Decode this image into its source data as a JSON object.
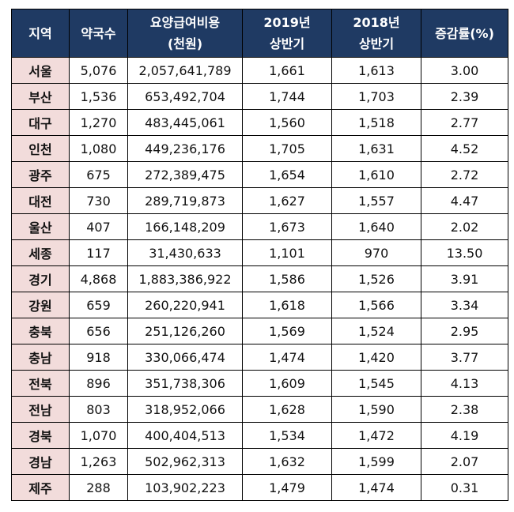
{
  "headers": {
    "region": "지역",
    "pharmacies": "약국수",
    "cost_line1": "요양급여비용",
    "cost_line2": "(천원)",
    "y2019_line1": "2019년",
    "y2019_line2": "상반기",
    "y2018_line1": "2018년",
    "y2018_line2": "상반기",
    "growth": "증감률(%)"
  },
  "rows": [
    {
      "region": "서울",
      "pharmacies": "5,076",
      "cost": "2,057,641,789",
      "y2019": "1,661",
      "y2018": "1,613",
      "growth": "3.00"
    },
    {
      "region": "부산",
      "pharmacies": "1,536",
      "cost": "653,492,704",
      "y2019": "1,744",
      "y2018": "1,703",
      "growth": "2.39"
    },
    {
      "region": "대구",
      "pharmacies": "1,270",
      "cost": "483,445,061",
      "y2019": "1,560",
      "y2018": "1,518",
      "growth": "2.77"
    },
    {
      "region": "인천",
      "pharmacies": "1,080",
      "cost": "449,236,176",
      "y2019": "1,705",
      "y2018": "1,631",
      "growth": "4.52"
    },
    {
      "region": "광주",
      "pharmacies": "675",
      "cost": "272,389,475",
      "y2019": "1,654",
      "y2018": "1,610",
      "growth": "2.72"
    },
    {
      "region": "대전",
      "pharmacies": "730",
      "cost": "289,719,873",
      "y2019": "1,627",
      "y2018": "1,557",
      "growth": "4.47"
    },
    {
      "region": "울산",
      "pharmacies": "407",
      "cost": "166,148,209",
      "y2019": "1,673",
      "y2018": "1,640",
      "growth": "2.02"
    },
    {
      "region": "세종",
      "pharmacies": "117",
      "cost": "31,430,633",
      "y2019": "1,101",
      "y2018": "970",
      "growth": "13.50"
    },
    {
      "region": "경기",
      "pharmacies": "4,868",
      "cost": "1,883,386,922",
      "y2019": "1,586",
      "y2018": "1,526",
      "growth": "3.91"
    },
    {
      "region": "강원",
      "pharmacies": "659",
      "cost": "260,220,941",
      "y2019": "1,618",
      "y2018": "1,566",
      "growth": "3.34"
    },
    {
      "region": "충북",
      "pharmacies": "656",
      "cost": "251,126,260",
      "y2019": "1,569",
      "y2018": "1,524",
      "growth": "2.95"
    },
    {
      "region": "충남",
      "pharmacies": "918",
      "cost": "330,066,474",
      "y2019": "1,474",
      "y2018": "1,420",
      "growth": "3.77"
    },
    {
      "region": "전북",
      "pharmacies": "896",
      "cost": "351,738,306",
      "y2019": "1,609",
      "y2018": "1,545",
      "growth": "4.13"
    },
    {
      "region": "전남",
      "pharmacies": "803",
      "cost": "318,952,066",
      "y2019": "1,628",
      "y2018": "1,590",
      "growth": "2.38"
    },
    {
      "region": "경북",
      "pharmacies": "1,070",
      "cost": "400,404,513",
      "y2019": "1,534",
      "y2018": "1,472",
      "growth": "4.19"
    },
    {
      "region": "경남",
      "pharmacies": "1,263",
      "cost": "502,962,313",
      "y2019": "1,632",
      "y2018": "1,599",
      "growth": "2.07"
    },
    {
      "region": "제주",
      "pharmacies": "288",
      "cost": "103,902,223",
      "y2019": "1,479",
      "y2018": "1,474",
      "growth": "0.31"
    }
  ],
  "colors": {
    "header_bg": "#1f3a63",
    "header_text": "#ffffff",
    "region_bg": "#f2dcdb"
  }
}
